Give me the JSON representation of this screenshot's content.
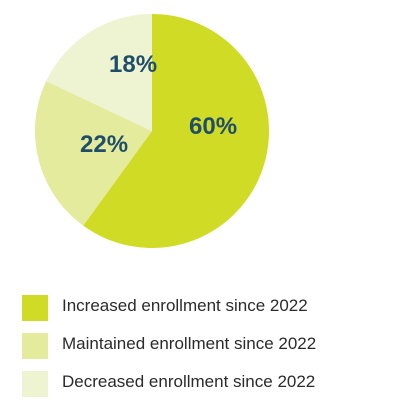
{
  "chart_data": {
    "type": "pie",
    "slices": [
      {
        "label": "Increased enrollment since 2022",
        "value": 60,
        "display": "60%",
        "color": "#cfdb25"
      },
      {
        "label": "Maintained enrollment since 2022",
        "value": 22,
        "display": "22%",
        "color": "#e4eb9d"
      },
      {
        "label": "Decreased enrollment since 2022",
        "value": 18,
        "display": "18%",
        "color": "#eef4d2"
      }
    ],
    "legend_position": "bottom-left"
  }
}
